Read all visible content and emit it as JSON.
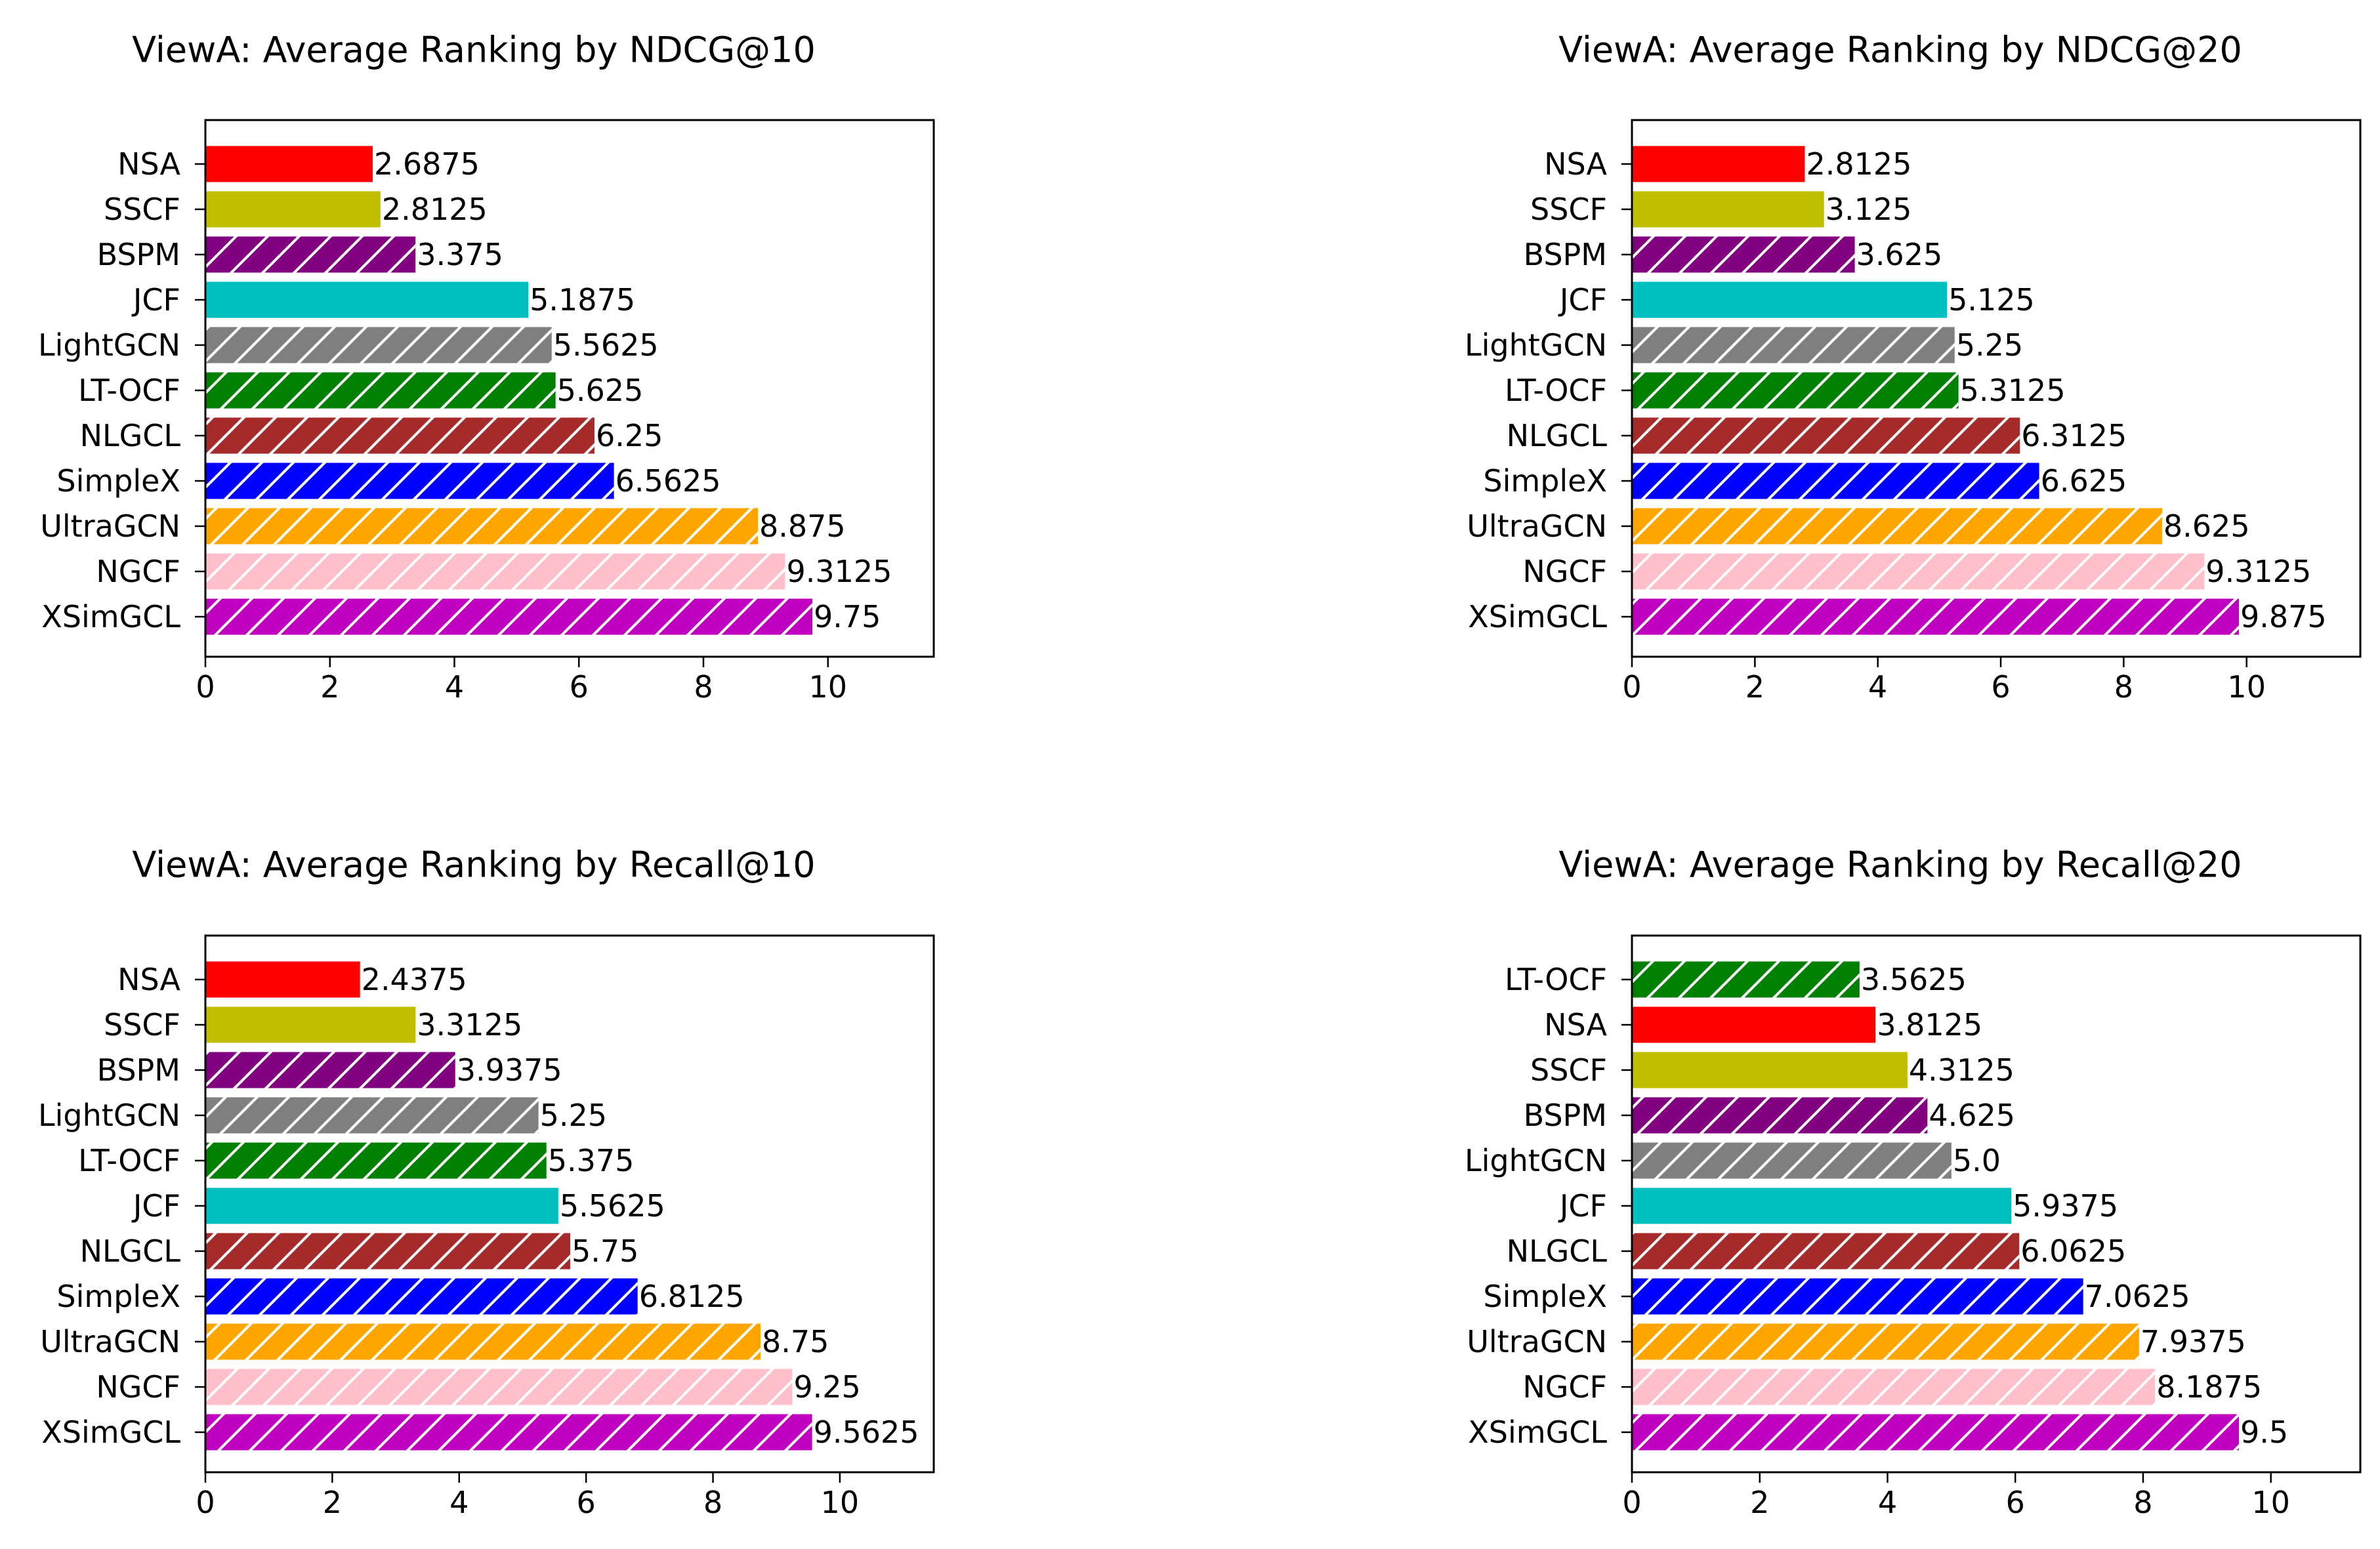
{
  "colors": {
    "NSA": "#ff0000",
    "SSCF": "#bfbf00",
    "BSPM": "#800080",
    "JCF": "#00bfbf",
    "LightGCN": "#808080",
    "LT-OCF": "#008000",
    "NLGCL": "#a52a2a",
    "SimpleX": "#0000ff",
    "UltraGCN": "#ffa500",
    "NGCF": "#ffc0cb",
    "XSimGCL": "#bf00bf"
  },
  "hatched": [
    "BSPM",
    "LightGCN",
    "LT-OCF",
    "NLGCL",
    "SimpleX",
    "UltraGCN",
    "NGCF",
    "XSimGCL"
  ],
  "chart_data": [
    {
      "type": "bar",
      "orientation": "horizontal",
      "title": "ViewA: Average Ranking by NDCG@10",
      "categories": [
        "NSA",
        "SSCF",
        "BSPM",
        "JCF",
        "LightGCN",
        "LT-OCF",
        "NLGCL",
        "SimpleX",
        "UltraGCN",
        "NGCF",
        "XSimGCL"
      ],
      "values": [
        2.6875,
        2.8125,
        3.375,
        5.1875,
        5.5625,
        5.625,
        6.25,
        6.5625,
        8.875,
        9.3125,
        9.75
      ],
      "value_labels": [
        "2.6875",
        "2.8125",
        "3.375",
        "5.1875",
        "5.5625",
        "5.625",
        "6.25",
        "6.5625",
        "8.875",
        "9.3125",
        "9.75"
      ],
      "xlim": [
        0,
        11.7
      ],
      "xticks": [
        "0",
        "2",
        "4",
        "6",
        "8",
        "10"
      ],
      "grid": false,
      "legend": "none"
    },
    {
      "type": "bar",
      "orientation": "horizontal",
      "title": "ViewA: Average Ranking by NDCG@20",
      "categories": [
        "NSA",
        "SSCF",
        "BSPM",
        "JCF",
        "LightGCN",
        "LT-OCF",
        "NLGCL",
        "SimpleX",
        "UltraGCN",
        "NGCF",
        "XSimGCL"
      ],
      "values": [
        2.8125,
        3.125,
        3.625,
        5.125,
        5.25,
        5.3125,
        6.3125,
        6.625,
        8.625,
        9.3125,
        9.875
      ],
      "value_labels": [
        "2.8125",
        "3.125",
        "3.625",
        "5.125",
        "5.25",
        "5.3125",
        "6.3125",
        "6.625",
        "8.625",
        "9.3125",
        "9.875"
      ],
      "xlim": [
        0,
        11.85
      ],
      "xticks": [
        "0",
        "2",
        "4",
        "6",
        "8",
        "10"
      ],
      "grid": false,
      "legend": "none"
    },
    {
      "type": "bar",
      "orientation": "horizontal",
      "title": "ViewA: Average Ranking by Recall@10",
      "categories": [
        "NSA",
        "SSCF",
        "BSPM",
        "LightGCN",
        "LT-OCF",
        "JCF",
        "NLGCL",
        "SimpleX",
        "UltraGCN",
        "NGCF",
        "XSimGCL"
      ],
      "values": [
        2.4375,
        3.3125,
        3.9375,
        5.25,
        5.375,
        5.5625,
        5.75,
        6.8125,
        8.75,
        9.25,
        9.5625
      ],
      "value_labels": [
        "2.4375",
        "3.3125",
        "3.9375",
        "5.25",
        "5.375",
        "5.5625",
        "5.75",
        "6.8125",
        "8.75",
        "9.25",
        "9.5625"
      ],
      "xlim": [
        0,
        11.48
      ],
      "xticks": [
        "0",
        "2",
        "4",
        "6",
        "8",
        "10"
      ],
      "grid": false,
      "legend": "none"
    },
    {
      "type": "bar",
      "orientation": "horizontal",
      "title": "ViewA: Average Ranking by Recall@20",
      "categories": [
        "LT-OCF",
        "NSA",
        "SSCF",
        "BSPM",
        "LightGCN",
        "JCF",
        "NLGCL",
        "SimpleX",
        "UltraGCN",
        "NGCF",
        "XSimGCL"
      ],
      "values": [
        3.5625,
        3.8125,
        4.3125,
        4.625,
        5.0,
        5.9375,
        6.0625,
        7.0625,
        7.9375,
        8.1875,
        9.5
      ],
      "value_labels": [
        "3.5625",
        "3.8125",
        "4.3125",
        "4.625",
        "5.0",
        "5.9375",
        "6.0625",
        "7.0625",
        "7.9375",
        "8.1875",
        "9.5"
      ],
      "xlim": [
        0,
        11.4
      ],
      "xticks": [
        "0",
        "2",
        "4",
        "6",
        "8",
        "10"
      ],
      "grid": false,
      "legend": "none"
    }
  ]
}
